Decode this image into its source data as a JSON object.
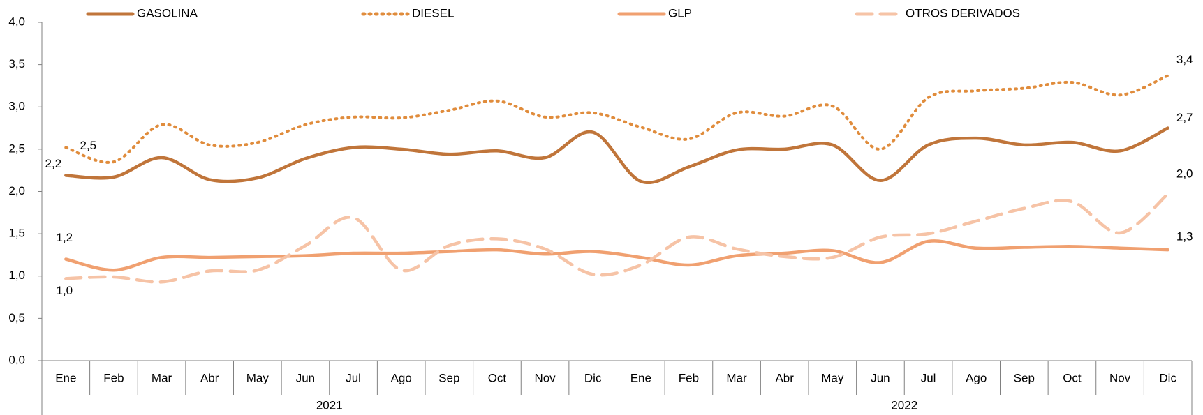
{
  "chart_data": {
    "type": "line",
    "categories": [
      "Ene",
      "Feb",
      "Mar",
      "Abr",
      "May",
      "Jun",
      "Jul",
      "Ago",
      "Sep",
      "Oct",
      "Nov",
      "Dic",
      "Ene",
      "Feb",
      "Mar",
      "Abr",
      "May",
      "Jun",
      "Jul",
      "Ago",
      "Sep",
      "Oct",
      "Nov",
      "Dic"
    ],
    "groups": [
      "2021",
      "2022"
    ],
    "ylim": [
      0,
      4
    ],
    "yticks": [
      {
        "value": 0,
        "label": "0,0"
      },
      {
        "value": 0.5,
        "label": "0,5"
      },
      {
        "value": 1,
        "label": "1,0"
      },
      {
        "value": 1.5,
        "label": "1,5"
      },
      {
        "value": 2,
        "label": "2,0"
      },
      {
        "value": 2.5,
        "label": "2,5"
      },
      {
        "value": 3,
        "label": "3,0"
      },
      {
        "value": 3.5,
        "label": "3,5"
      },
      {
        "value": 4,
        "label": "4,0"
      }
    ],
    "legend": "top",
    "series": [
      {
        "name": "GASOLINA",
        "color": "#c0753a",
        "style": "solid",
        "values": [
          2.19,
          2.17,
          2.4,
          2.14,
          2.16,
          2.39,
          2.52,
          2.5,
          2.44,
          2.48,
          2.4,
          2.7,
          2.12,
          2.29,
          2.49,
          2.5,
          2.55,
          2.13,
          2.55,
          2.63,
          2.55,
          2.58,
          2.48,
          2.75
        ],
        "value_labels": [
          "2,2",
          null,
          null,
          null,
          null,
          null,
          null,
          null,
          null,
          null,
          null,
          null,
          null,
          null,
          null,
          null,
          null,
          null,
          null,
          null,
          null,
          null,
          null,
          "2,7"
        ]
      },
      {
        "name": "DIESEL",
        "color": "#e08c3c",
        "style": "dotted",
        "values": [
          2.52,
          2.35,
          2.79,
          2.55,
          2.58,
          2.79,
          2.88,
          2.87,
          2.96,
          3.07,
          2.88,
          2.93,
          2.76,
          2.62,
          2.93,
          2.89,
          3.01,
          2.5,
          3.11,
          3.19,
          3.22,
          3.29,
          3.14,
          3.37
        ],
        "value_labels": [
          "2,5",
          null,
          null,
          null,
          null,
          null,
          null,
          null,
          null,
          null,
          null,
          null,
          null,
          null,
          null,
          null,
          null,
          null,
          null,
          null,
          null,
          null,
          null,
          "3,4"
        ]
      },
      {
        "name": "GLP",
        "color": "#f0a070",
        "style": "solid",
        "values": [
          1.2,
          1.07,
          1.22,
          1.22,
          1.23,
          1.24,
          1.27,
          1.27,
          1.29,
          1.31,
          1.26,
          1.29,
          1.22,
          1.13,
          1.24,
          1.27,
          1.3,
          1.16,
          1.41,
          1.33,
          1.34,
          1.35,
          1.33,
          1.31
        ],
        "value_labels": [
          "1,2",
          null,
          null,
          null,
          null,
          null,
          null,
          null,
          null,
          null,
          null,
          null,
          null,
          null,
          null,
          null,
          null,
          null,
          null,
          null,
          null,
          null,
          null,
          "1,3"
        ]
      },
      {
        "name": "OTROS DERIVADOS",
        "color": "#f6c3a6",
        "style": "dashed",
        "values": [
          0.97,
          0.99,
          0.93,
          1.06,
          1.07,
          1.36,
          1.69,
          1.07,
          1.36,
          1.44,
          1.32,
          1.02,
          1.13,
          1.46,
          1.32,
          1.23,
          1.22,
          1.46,
          1.5,
          1.65,
          1.8,
          1.88,
          1.51,
          1.97
        ],
        "value_labels": [
          "1,0",
          null,
          null,
          null,
          null,
          null,
          null,
          null,
          null,
          null,
          null,
          null,
          null,
          null,
          null,
          null,
          null,
          null,
          null,
          null,
          null,
          null,
          null,
          "2,0"
        ]
      }
    ]
  }
}
